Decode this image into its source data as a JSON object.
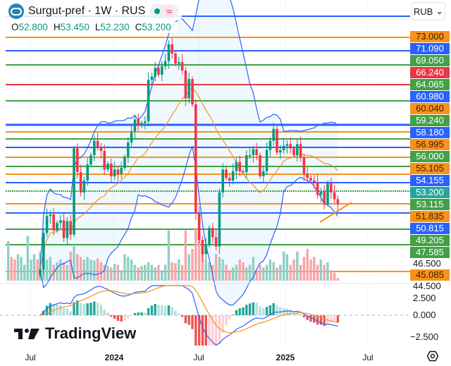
{
  "header": {
    "title": "Surgut-pref · 1W · RUS",
    "status_icon": "green-dot-icon",
    "approx_symbol": "≈",
    "ohlc": {
      "o_label": "O",
      "o": "52.800",
      "h_label": "H",
      "h": "53.450",
      "l_label": "L",
      "l": "52.230",
      "c_label": "C",
      "c": "53.200"
    }
  },
  "currency": "RUB",
  "price_levels": [
    {
      "value": "73.000",
      "color": "#f7931a"
    },
    {
      "value": "71.090",
      "color": "#2962ff"
    },
    {
      "value": "69.050",
      "color": "#43a047"
    },
    {
      "value": "66.240",
      "color": "#e53945"
    },
    {
      "value": "64.065",
      "color": "#43a047"
    },
    {
      "value": "60.980",
      "color": "#2962ff"
    },
    {
      "value": "60.040",
      "color": "#f7931a"
    },
    {
      "value": "59.240",
      "color": "#43a047"
    },
    {
      "value": "58.180",
      "color": "#2962ff"
    },
    {
      "value": "56.995",
      "color": "#f7931a"
    },
    {
      "value": "56.000",
      "color": "#43a047"
    },
    {
      "value": "55.105",
      "color": "#f7931a"
    },
    {
      "value": "54.155",
      "color": "#2962ff"
    },
    {
      "value": "53.200",
      "color": "#26a69a"
    },
    {
      "value": "53.115",
      "color": "#43a047"
    },
    {
      "value": "51.835",
      "color": "#f7931a"
    },
    {
      "value": "50.815",
      "color": "#2962ff"
    },
    {
      "value": "49.205",
      "color": "#43a047"
    },
    {
      "value": "47.585",
      "color": "#43a047"
    },
    {
      "value": "45.085",
      "color": "#f7931a"
    }
  ],
  "price_axis_ticks": [
    "46.500",
    "44.500"
  ],
  "macd_axis_ticks": [
    "2.500",
    "0.000",
    "−2.500"
  ],
  "x_axis": [
    {
      "label": "Jul",
      "bold": false
    },
    {
      "label": "2024",
      "bold": true
    },
    {
      "label": "Jul",
      "bold": false
    },
    {
      "label": "2025",
      "bold": true
    },
    {
      "label": "Jul",
      "bold": false
    }
  ],
  "brand": "TradingView",
  "colors": {
    "up": "#089981",
    "down": "#f23645",
    "bb": "#2962ff",
    "sma": "#f7931a"
  },
  "chart_data": {
    "type": "candlestick",
    "title": "Surgut-pref · 1W · RUS",
    "ylim": [
      44.5,
      73
    ],
    "closes": [
      45.5,
      49.8,
      51.8,
      52,
      50.1,
      51,
      51.3,
      49.2,
      51.2,
      49.6,
      59.8,
      57,
      54.6,
      56,
      57.9,
      59,
      60.7,
      60,
      59.5,
      57.3,
      58,
      56.5,
      57.3,
      56.8,
      57.5,
      58.8,
      60.5,
      61.8,
      63.2,
      62.5,
      62.8,
      63,
      67.9,
      68.3,
      69.3,
      68.5,
      69.5,
      70.1,
      72.1,
      71,
      69.8,
      70,
      69,
      65.7,
      68,
      65,
      52.1,
      49,
      47.3,
      48.4,
      50.4,
      49.3,
      48.2,
      54.6,
      57.3,
      56.3,
      56,
      57.1,
      58.2,
      57.1,
      57,
      59,
      59,
      59.7,
      59,
      56.5,
      57.1,
      59.6,
      60.7,
      62.1,
      59.3,
      59.6,
      60.1,
      60.3,
      59.8,
      59,
      60.3,
      58.7,
      56.8,
      56.3,
      56,
      55.8,
      54.3,
      54.7,
      53.2,
      55.7,
      54.6,
      53.8,
      53.2
    ],
    "first_open": 44.8,
    "volume": [
      0.55,
      0.7,
      0.4,
      0.45,
      0.3,
      0.35,
      0.4,
      0.35,
      0.3,
      0.55,
      0.65,
      0.5,
      0.45,
      0.4,
      0.45,
      0.4,
      0.38,
      0.42,
      0.35,
      0.3,
      0.28,
      0.25,
      0.32,
      0.3,
      0.2,
      0.5,
      0.45,
      0.4,
      0.3,
      0.25,
      0.28,
      0.3,
      0.35,
      0.3,
      0.25,
      0.3,
      0.2,
      0.3,
      0.95,
      0.35,
      0.33,
      0.4,
      0.3,
      0.95,
      0.5,
      0.6,
      1.0,
      0.9,
      0.55,
      0.4,
      0.35,
      0.3,
      0.5,
      0.45,
      0.4,
      0.3,
      0.2,
      0.25,
      0.3,
      0.4,
      0.35,
      0.25,
      0.3,
      0.45,
      0.2,
      0.3,
      0.25,
      0.3,
      0.4,
      0.35,
      0.25,
      0.3,
      0.55,
      0.5,
      0.3,
      0.4,
      0.55,
      0.3,
      0.45,
      0.6,
      0.4,
      0.45,
      0.3,
      0.4,
      0.3,
      0.35,
      0.2,
      0.15,
      0.05
    ],
    "pre_volume": [
      0.75,
      -0.45,
      -0.4,
      0.5,
      0.45,
      0.3,
      0.85,
      0.4,
      0.5,
      -0.4
    ]
  }
}
